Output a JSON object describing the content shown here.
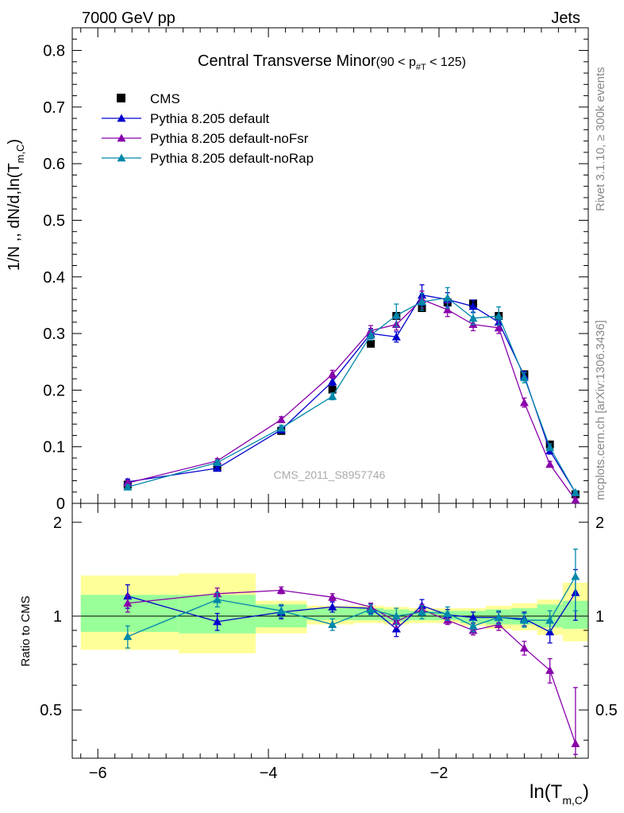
{
  "header": {
    "left": "7000 GeV pp",
    "right": "Jets"
  },
  "side_labels": {
    "rivet": "Rivet 3.1.10, ≥ 300k events",
    "mcplots": "mcplots.cern.ch [arXiv:1306.3436]"
  },
  "watermark": "CMS_2011_S8957746",
  "chart_data": {
    "type": "line",
    "title_main": "Central Transverse Minor",
    "title_sub": "(90 < p",
    "title_sub_index": "#T",
    "title_sub_end": " < 125)",
    "ylabel": "1/N ,, dN/d,ln(T",
    "ylabel_sub": "m,C",
    "ylabel_end": ")",
    "ratio_ylabel": "Ratio to CMS",
    "xlabel": "ln(T",
    "xlabel_sub": "m,C",
    "xlabel_end": ")",
    "xlim": [
      -6.3,
      -0.25
    ],
    "ylim": [
      0,
      0.84
    ],
    "ratio_ylim": [
      0.35,
      2.3
    ],
    "x_ticks": [
      -6,
      -4,
      -2
    ],
    "x_tick_labels": [
      "−6",
      "−4",
      "−2"
    ],
    "y_ticks": [
      0,
      0.1,
      0.2,
      0.3,
      0.4,
      0.5,
      0.6,
      0.7,
      0.8
    ],
    "y_tick_labels": [
      "0",
      "0.1",
      "0.2",
      "0.3",
      "0.4",
      "0.5",
      "0.6",
      "0.7",
      "0.8"
    ],
    "ratio_ticks": [
      0.5,
      1,
      2
    ],
    "ratio_tick_labels": [
      "0.5",
      "1",
      "2"
    ],
    "bins": [
      [
        -6.2,
        -5.05
      ],
      [
        -5.05,
        -4.15
      ],
      [
        -4.15,
        -3.55
      ],
      [
        -3.55,
        -3.0
      ],
      [
        -3.0,
        -2.65
      ],
      [
        -2.65,
        -2.35
      ],
      [
        -2.35,
        -2.05
      ],
      [
        -2.05,
        -1.75
      ],
      [
        -1.75,
        -1.45
      ],
      [
        -1.45,
        -1.15
      ],
      [
        -1.15,
        -0.85
      ],
      [
        -0.85,
        -0.55
      ],
      [
        -0.55,
        -0.25
      ]
    ],
    "band_inner": [
      [
        0.89,
        1.17
      ],
      [
        0.88,
        1.17
      ],
      [
        0.92,
        1.09
      ],
      [
        0.97,
        1.06
      ],
      [
        0.97,
        1.06
      ],
      [
        0.96,
        1.05
      ],
      [
        0.97,
        1.04
      ],
      [
        0.97,
        1.04
      ],
      [
        0.95,
        1.04
      ],
      [
        0.94,
        1.05
      ],
      [
        0.94,
        1.06
      ],
      [
        0.92,
        1.09
      ],
      [
        0.91,
        1.12
      ]
    ],
    "band_outer": [
      [
        0.78,
        1.35
      ],
      [
        0.76,
        1.37
      ],
      [
        0.88,
        1.12
      ],
      [
        0.94,
        1.08
      ],
      [
        0.95,
        1.08
      ],
      [
        0.94,
        1.07
      ],
      [
        0.95,
        1.06
      ],
      [
        0.95,
        1.06
      ],
      [
        0.93,
        1.06
      ],
      [
        0.91,
        1.08
      ],
      [
        0.9,
        1.1
      ],
      [
        0.87,
        1.13
      ],
      [
        0.83,
        1.28
      ]
    ],
    "series": [
      {
        "name": "CMS",
        "color": "#000000",
        "marker": "square",
        "x": [
          -5.65,
          -4.6,
          -3.85,
          -3.25,
          -2.8,
          -2.5,
          -2.2,
          -1.9,
          -1.6,
          -1.3,
          -1.0,
          -0.7,
          -0.4
        ],
        "y": [
          0.033,
          0.064,
          0.128,
          0.201,
          0.282,
          0.331,
          0.345,
          0.355,
          0.353,
          0.331,
          0.228,
          0.104,
          0.016
        ]
      },
      {
        "name": "Pythia 8.205 default",
        "color": "#0000cc",
        "marker": "triangle",
        "x": [
          -5.65,
          -4.6,
          -3.85,
          -3.25,
          -2.8,
          -2.5,
          -2.2,
          -1.9,
          -1.6,
          -1.3,
          -1.0,
          -0.7,
          -0.4
        ],
        "y": [
          0.038,
          0.062,
          0.13,
          0.215,
          0.3,
          0.294,
          0.368,
          0.36,
          0.348,
          0.32,
          0.225,
          0.093,
          0.019
        ],
        "err": [
          0.005,
          0.004,
          0.005,
          0.007,
          0.009,
          0.009,
          0.018,
          0.012,
          0.011,
          0.01,
          0.008,
          0.006,
          0.003
        ],
        "ratio": [
          1.16,
          0.96,
          1.03,
          1.07,
          1.06,
          0.91,
          1.08,
          1.01,
          0.99,
          0.99,
          0.98,
          0.89,
          1.19
        ],
        "ratio_err": [
          0.1,
          0.06,
          0.05,
          0.04,
          0.04,
          0.05,
          0.05,
          0.04,
          0.04,
          0.04,
          0.05,
          0.07,
          0.22
        ]
      },
      {
        "name": "Pythia 8.205 default-noFsr",
        "color": "#8800aa",
        "marker": "triangle",
        "x": [
          -5.65,
          -4.6,
          -3.85,
          -3.25,
          -2.8,
          -2.5,
          -2.2,
          -1.9,
          -1.6,
          -1.3,
          -1.0,
          -0.7,
          -0.4
        ],
        "y": [
          0.036,
          0.075,
          0.148,
          0.228,
          0.305,
          0.316,
          0.36,
          0.342,
          0.316,
          0.31,
          0.178,
          0.069,
          0.006
        ],
        "err": [
          0.005,
          0.004,
          0.005,
          0.007,
          0.009,
          0.01,
          0.015,
          0.012,
          0.011,
          0.01,
          0.008,
          0.005,
          0.003
        ],
        "ratio": [
          1.1,
          1.18,
          1.21,
          1.15,
          1.07,
          0.96,
          1.05,
          0.97,
          0.9,
          0.94,
          0.79,
          0.67,
          0.39
        ],
        "ratio_err": [
          0.07,
          0.05,
          0.03,
          0.03,
          0.03,
          0.04,
          0.04,
          0.03,
          0.03,
          0.04,
          0.04,
          0.06,
          0.2
        ]
      },
      {
        "name": "Pythia 8.205 default-noRap",
        "color": "#0088aa",
        "marker": "triangle",
        "x": [
          -5.65,
          -4.6,
          -3.85,
          -3.25,
          -2.8,
          -2.5,
          -2.2,
          -1.9,
          -1.6,
          -1.3,
          -1.0,
          -0.7,
          -0.4
        ],
        "y": [
          0.029,
          0.072,
          0.133,
          0.189,
          0.297,
          0.332,
          0.356,
          0.363,
          0.327,
          0.331,
          0.222,
          0.099,
          0.019
        ],
        "err": [
          0.004,
          0.004,
          0.005,
          0.006,
          0.009,
          0.02,
          0.015,
          0.018,
          0.011,
          0.016,
          0.009,
          0.006,
          0.003
        ],
        "ratio": [
          0.86,
          1.13,
          1.04,
          0.94,
          1.05,
          1.0,
          1.03,
          1.02,
          0.93,
          0.99,
          0.97,
          0.97,
          1.34
        ],
        "ratio_err": [
          0.07,
          0.06,
          0.05,
          0.04,
          0.04,
          0.06,
          0.05,
          0.05,
          0.04,
          0.05,
          0.05,
          0.07,
          0.3
        ]
      }
    ]
  }
}
